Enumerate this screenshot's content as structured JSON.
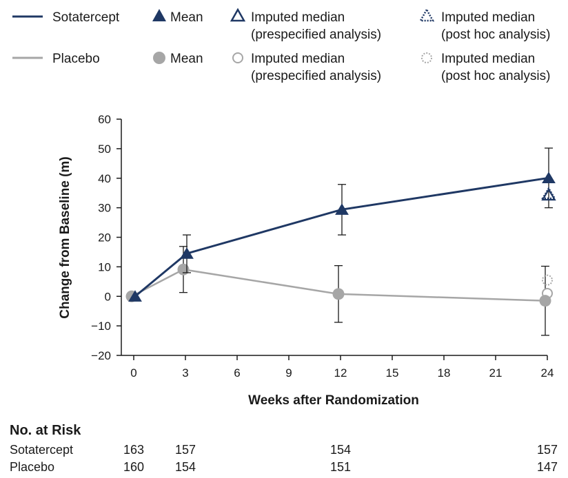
{
  "legend": {
    "sotatercept": "Sotatercept",
    "placebo": "Placebo",
    "mean": "Mean",
    "imputed_median": "Imputed median",
    "prespecified": "(prespecified analysis)",
    "posthoc": "(post hoc analysis)"
  },
  "colors": {
    "sotatercept": "#1f3864",
    "placebo": "#a6a6a6"
  },
  "chart_data": {
    "type": "line",
    "xlabel": "Weeks after Randomization",
    "ylabel": "Change from Baseline (m)",
    "xlim": [
      0,
      24
    ],
    "ylim": [
      -20,
      60
    ],
    "x_ticks": [
      0,
      3,
      6,
      9,
      12,
      15,
      18,
      21,
      24
    ],
    "y_ticks": [
      60,
      50,
      40,
      30,
      20,
      10,
      0,
      -10,
      -20
    ],
    "series": [
      {
        "name": "Sotatercept",
        "marker": "triangle",
        "x": [
          0,
          3,
          12,
          24
        ],
        "mean": [
          0,
          14.5,
          29.4,
          40.1
        ],
        "err_low": [
          0,
          8.0,
          20.8,
          30.0
        ],
        "err_high": [
          0,
          20.8,
          37.9,
          50.2
        ],
        "imputed_median_prespecified": {
          "x": 24,
          "y": 34.3
        },
        "imputed_median_posthoc": {
          "x": 24,
          "y": 34.8
        }
      },
      {
        "name": "Placebo",
        "marker": "circle",
        "x": [
          0,
          3,
          12,
          24
        ],
        "mean": [
          0,
          9.1,
          0.8,
          -1.5
        ],
        "err_low": [
          0,
          1.3,
          -8.8,
          -13.2
        ],
        "err_high": [
          0,
          16.9,
          10.4,
          10.2
        ],
        "imputed_median_prespecified": {
          "x": 24,
          "y": 1.0
        },
        "imputed_median_posthoc": {
          "x": 24,
          "y": 5.5
        }
      }
    ]
  },
  "risk_table": {
    "title": "No. at Risk",
    "rows": [
      {
        "label": "Sotatercept",
        "values": [
          {
            "x": 0,
            "n": "163"
          },
          {
            "x": 3,
            "n": "157"
          },
          {
            "x": 12,
            "n": "154"
          },
          {
            "x": 24,
            "n": "157"
          }
        ]
      },
      {
        "label": "Placebo",
        "values": [
          {
            "x": 0,
            "n": "160"
          },
          {
            "x": 3,
            "n": "154"
          },
          {
            "x": 12,
            "n": "151"
          },
          {
            "x": 24,
            "n": "147"
          }
        ]
      }
    ]
  }
}
